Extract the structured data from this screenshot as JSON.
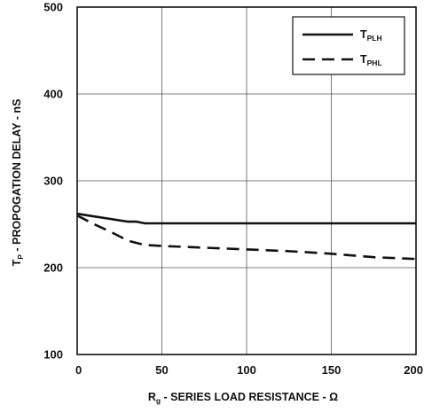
{
  "chart_data": {
    "type": "line",
    "xlabel": {
      "main": "R",
      "sub": "g",
      "rest": " - SERIES LOAD RESISTANCE - Ω"
    },
    "ylabel": {
      "main": "T",
      "sub": "P",
      "rest": " - PROPOGATION DELAY - nS"
    },
    "xlim": [
      0,
      200
    ],
    "ylim": [
      100,
      500
    ],
    "xticks": [
      "0",
      "50",
      "100",
      "150",
      "200"
    ],
    "yticks": [
      "100",
      "200",
      "300",
      "400",
      "500"
    ],
    "grid": true,
    "legend_position": "top-right",
    "series": [
      {
        "name": {
          "main": "T",
          "sub": "PLH"
        },
        "style": "solid",
        "color": "#111111",
        "x": [
          0,
          10,
          20,
          30,
          35,
          40,
          45,
          60,
          100,
          150,
          200
        ],
        "y": [
          262,
          259,
          256,
          253,
          253,
          251,
          251,
          251,
          251,
          251,
          251
        ]
      },
      {
        "name": {
          "main": "T",
          "sub": "PHL"
        },
        "style": "dashed",
        "color": "#111111",
        "x": [
          0,
          10,
          20,
          30,
          40,
          50,
          75,
          100,
          125,
          150,
          175,
          200
        ],
        "y": [
          260,
          250,
          241,
          231,
          226,
          225,
          223,
          221,
          219,
          216,
          212,
          210
        ]
      }
    ]
  }
}
